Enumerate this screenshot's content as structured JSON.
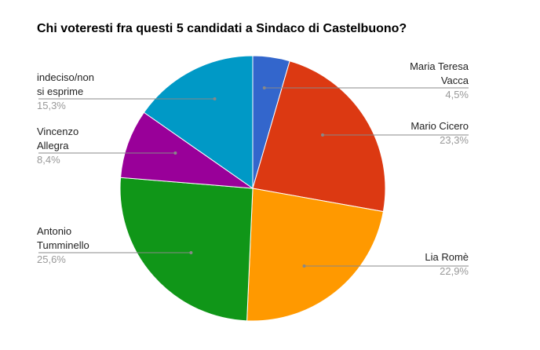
{
  "chart_data": {
    "type": "pie",
    "title": "Chi voteresti fra questi 5 candidati a Sindaco di Castelbuono?",
    "slices": [
      {
        "name": "Maria Teresa Vacca",
        "name_lines": [
          "Maria Teresa",
          "Vacca"
        ],
        "value": 4.5,
        "label": "4,5%",
        "color": "#3366cc"
      },
      {
        "name": "Mario Cicero",
        "name_lines": [
          "Mario Cicero"
        ],
        "value": 23.3,
        "label": "23,3%",
        "color": "#dc3912"
      },
      {
        "name": "Lia Romè",
        "name_lines": [
          "Lia Romè"
        ],
        "value": 22.9,
        "label": "22,9%",
        "color": "#ff9900"
      },
      {
        "name": "Antonio Tumminello",
        "name_lines": [
          "Antonio",
          "Tumminello"
        ],
        "value": 25.6,
        "label": "25,6%",
        "color": "#109618"
      },
      {
        "name": "Vincenzo Allegra",
        "name_lines": [
          "Vincenzo",
          "Allegra"
        ],
        "value": 8.4,
        "label": "8,4%",
        "color": "#990099"
      },
      {
        "name": "indeciso/non si esprime",
        "name_lines": [
          "indeciso/non",
          "si esprime"
        ],
        "value": 15.3,
        "label": "15,3%",
        "color": "#0099c6"
      }
    ],
    "legend": "labeled"
  }
}
